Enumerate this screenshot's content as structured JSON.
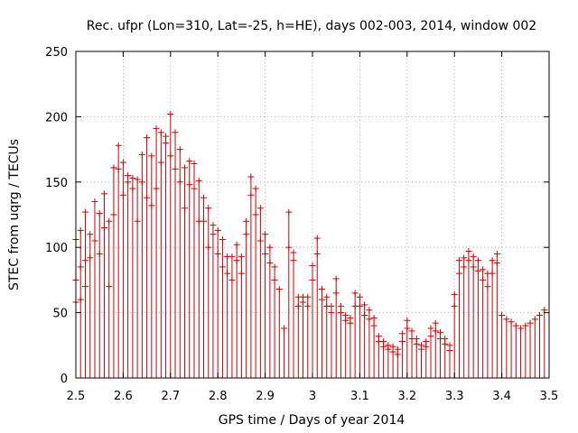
{
  "chart_data": {
    "type": "scatter",
    "title": "Rec. ufpr (Lon=310, Lat=-25, h=HE), days 002-003, 2014, window 002",
    "xlabel": "GPS time / Days of year 2014",
    "ylabel": "STEC from uqrg / TECUs",
    "xlim": [
      2.5,
      3.5
    ],
    "ylim": [
      0,
      250
    ],
    "xticks": [
      "2.5",
      "2.6",
      "2.7",
      "2.8",
      "2.9",
      "3",
      "3.1",
      "3.2",
      "3.3",
      "3.4",
      "3.5"
    ],
    "yticks": [
      "0",
      "50",
      "100",
      "150",
      "200",
      "250"
    ],
    "grid": true,
    "marker": "plus",
    "impulses": true,
    "series_color": "#cc0000",
    "series": [
      {
        "name": "STEC",
        "x": [
          2.5,
          2.51,
          2.52,
          2.53,
          2.54,
          2.55,
          2.56,
          2.57,
          2.58,
          2.59,
          2.6,
          2.61,
          2.62,
          2.63,
          2.64,
          2.65,
          2.66,
          2.67,
          2.68,
          2.69,
          2.7,
          2.71,
          2.72,
          2.73,
          2.74,
          2.75,
          2.76,
          2.77,
          2.78,
          2.79,
          2.8,
          2.81,
          2.82,
          2.83,
          2.84,
          2.85,
          2.86,
          2.87,
          2.88,
          2.89,
          2.9,
          2.91,
          2.92,
          2.93,
          2.94,
          2.95,
          2.96,
          2.97,
          2.98,
          2.99,
          3.0,
          3.01,
          3.02,
          3.03,
          3.04,
          3.05,
          3.06,
          3.07,
          3.08,
          3.09,
          3.1,
          3.11,
          3.12,
          3.13,
          3.14,
          3.15,
          3.16,
          3.17,
          3.18,
          3.19,
          3.2,
          3.21,
          3.22,
          3.23,
          3.24,
          3.25,
          3.26,
          3.27,
          3.28,
          3.29,
          3.3,
          3.31,
          3.32,
          3.33,
          3.34,
          3.35,
          3.36,
          3.37,
          3.38,
          3.39,
          3.4,
          3.41,
          3.42,
          3.43,
          3.44,
          3.45,
          3.46,
          3.47,
          3.48,
          3.49
        ],
        "y": [
          106,
          113,
          127,
          110,
          135,
          126,
          141,
          120,
          161,
          178,
          165,
          155,
          153,
          152,
          171,
          184,
          170,
          191,
          188,
          185,
          202,
          188,
          175,
          161,
          166,
          164,
          151,
          138,
          130,
          117,
          113,
          106,
          93,
          93,
          102,
          93,
          120,
          154,
          145,
          130,
          110,
          100,
          85,
          68,
          38,
          127,
          96,
          62,
          62,
          62,
          86,
          107,
          68,
          62,
          55,
          76,
          55,
          48,
          46,
          65,
          62,
          56,
          52,
          46,
          32,
          28,
          25,
          24,
          22,
          34,
          44,
          36,
          30,
          25,
          28,
          38,
          42,
          35,
          30,
          25,
          64,
          90,
          92,
          97,
          93,
          90,
          83,
          80,
          90,
          95,
          48,
          45,
          43,
          40,
          38,
          40,
          42,
          45,
          48,
          52
        ],
        "y_extra": [
          [
            2.5,
            75
          ],
          [
            2.5,
            58
          ],
          [
            2.51,
            85
          ],
          [
            2.51,
            60
          ],
          [
            2.52,
            90
          ],
          [
            2.52,
            70
          ],
          [
            2.53,
            92
          ],
          [
            2.54,
            105
          ],
          [
            2.55,
            95
          ],
          [
            2.56,
            115
          ],
          [
            2.57,
            70
          ],
          [
            2.58,
            125
          ],
          [
            2.59,
            160
          ],
          [
            2.6,
            140
          ],
          [
            2.61,
            150
          ],
          [
            2.62,
            145
          ],
          [
            2.63,
            120
          ],
          [
            2.64,
            150
          ],
          [
            2.65,
            138
          ],
          [
            2.66,
            132
          ],
          [
            2.67,
            145
          ],
          [
            2.68,
            165
          ],
          [
            2.69,
            180
          ],
          [
            2.7,
            170
          ],
          [
            2.71,
            160
          ],
          [
            2.72,
            150
          ],
          [
            2.73,
            130
          ],
          [
            2.74,
            148
          ],
          [
            2.75,
            145
          ],
          [
            2.76,
            120
          ],
          [
            2.77,
            120
          ],
          [
            2.78,
            100
          ],
          [
            2.79,
            110
          ],
          [
            2.8,
            95
          ],
          [
            2.81,
            85
          ],
          [
            2.82,
            80
          ],
          [
            2.83,
            75
          ],
          [
            2.84,
            90
          ],
          [
            2.85,
            80
          ],
          [
            2.86,
            110
          ],
          [
            2.87,
            140
          ],
          [
            2.88,
            125
          ],
          [
            2.89,
            105
          ],
          [
            2.9,
            95
          ],
          [
            2.91,
            88
          ],
          [
            2.92,
            75
          ],
          [
            2.95,
            100
          ],
          [
            2.96,
            90
          ],
          [
            2.97,
            55
          ],
          [
            2.98,
            58
          ],
          [
            2.99,
            55
          ],
          [
            3.0,
            75
          ],
          [
            3.01,
            95
          ],
          [
            3.02,
            60
          ],
          [
            3.03,
            55
          ],
          [
            3.04,
            50
          ],
          [
            3.05,
            65
          ],
          [
            3.06,
            50
          ],
          [
            3.07,
            44
          ],
          [
            3.08,
            42
          ],
          [
            3.09,
            55
          ],
          [
            3.1,
            55
          ],
          [
            3.11,
            48
          ],
          [
            3.12,
            45
          ],
          [
            3.13,
            40
          ],
          [
            3.14,
            28
          ],
          [
            3.15,
            24
          ],
          [
            3.16,
            22
          ],
          [
            3.17,
            20
          ],
          [
            3.18,
            18
          ],
          [
            3.19,
            28
          ],
          [
            3.2,
            38
          ],
          [
            3.21,
            30
          ],
          [
            3.22,
            26
          ],
          [
            3.23,
            22
          ],
          [
            3.24,
            24
          ],
          [
            3.25,
            32
          ],
          [
            3.26,
            36
          ],
          [
            3.27,
            30
          ],
          [
            3.28,
            26
          ],
          [
            3.29,
            21
          ],
          [
            3.3,
            55
          ],
          [
            3.31,
            80
          ],
          [
            3.32,
            85
          ],
          [
            3.33,
            90
          ],
          [
            3.34,
            85
          ],
          [
            3.35,
            82
          ],
          [
            3.36,
            75
          ],
          [
            3.37,
            70
          ],
          [
            3.38,
            80
          ],
          [
            3.39,
            88
          ]
        ]
      }
    ]
  }
}
